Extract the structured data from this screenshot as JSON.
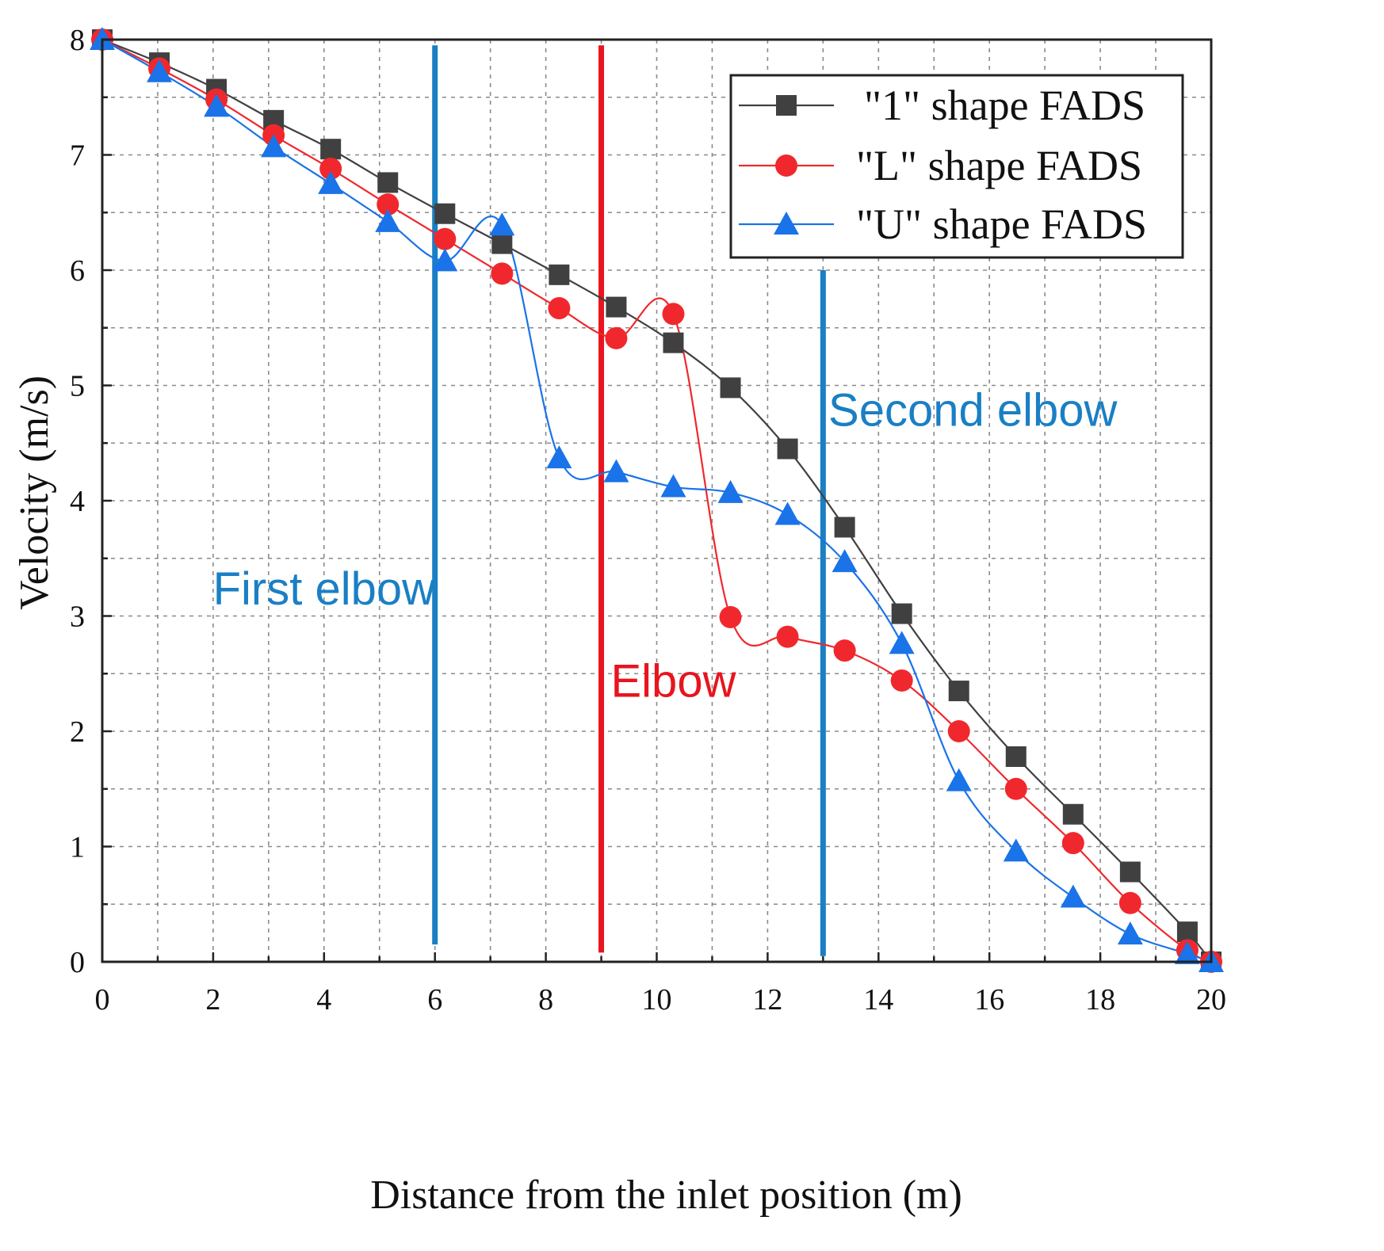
{
  "chart_data": {
    "type": "line",
    "title": "",
    "xlabel": "Distance from the inlet position (m)",
    "ylabel": "Velocity (m/s)",
    "xlim": [
      0,
      20
    ],
    "ylim": [
      0,
      8
    ],
    "xticks": [
      0,
      2,
      4,
      6,
      8,
      10,
      12,
      14,
      16,
      18,
      20
    ],
    "yticks": [
      0,
      1,
      2,
      3,
      4,
      5,
      6,
      7,
      8
    ],
    "grid": true,
    "legend_position": "top-right",
    "series": [
      {
        "name": "\"1\" shape FADS",
        "color": "#404040",
        "marker": "square",
        "x": [
          0,
          1.03,
          2.06,
          3.09,
          4.12,
          5.15,
          6.18,
          7.21,
          8.24,
          9.27,
          10.3,
          11.33,
          12.36,
          13.39,
          14.42,
          15.45,
          16.48,
          17.51,
          18.54,
          19.57,
          20
        ],
        "y": [
          8.0,
          7.8,
          7.57,
          7.3,
          7.05,
          6.76,
          6.49,
          6.23,
          5.96,
          5.68,
          5.37,
          4.98,
          4.45,
          3.77,
          3.02,
          2.35,
          1.78,
          1.28,
          0.78,
          0.26,
          0.0
        ]
      },
      {
        "name": "\"L\" shape FADS",
        "color": "#f0282d",
        "marker": "circle",
        "x": [
          0,
          1.03,
          2.06,
          3.09,
          4.12,
          5.15,
          6.18,
          7.21,
          8.24,
          9.27,
          10.3,
          11.33,
          12.36,
          13.39,
          14.42,
          15.45,
          16.48,
          17.51,
          18.54,
          19.57,
          20
        ],
        "y": [
          8.0,
          7.75,
          7.48,
          7.17,
          6.88,
          6.57,
          6.27,
          5.97,
          5.67,
          5.41,
          5.62,
          2.99,
          2.82,
          2.7,
          2.44,
          2.0,
          1.5,
          1.03,
          0.51,
          0.1,
          0.0
        ]
      },
      {
        "name": "\"U\" shape FADS",
        "color": "#1a73e8",
        "marker": "triangle",
        "x": [
          0,
          1.03,
          2.06,
          3.09,
          4.12,
          5.15,
          6.18,
          7.21,
          8.24,
          9.27,
          10.3,
          11.33,
          12.36,
          13.39,
          14.42,
          15.45,
          16.48,
          17.51,
          18.54,
          19.57,
          20
        ],
        "y": [
          8.0,
          7.72,
          7.42,
          7.07,
          6.75,
          6.42,
          6.08,
          6.39,
          4.37,
          4.25,
          4.12,
          4.07,
          3.88,
          3.47,
          2.76,
          1.57,
          0.96,
          0.56,
          0.24,
          0.07,
          0.0
        ]
      }
    ],
    "annotations": [
      {
        "label": "First elbow",
        "x_line": 6,
        "color": "#1a7fc4",
        "text_x": 4.0,
        "text_y": 3.1,
        "line_y": [
          0.15,
          7.95
        ]
      },
      {
        "label": "Elbow",
        "x_line": 9,
        "color": "#e8141e",
        "text_x": 10.3,
        "text_y": 2.3,
        "line_y": [
          0.08,
          7.95
        ]
      },
      {
        "label": "Second elbow",
        "x_line": 13,
        "color": "#1a7fc4",
        "text_x": 15.7,
        "text_y": 4.65,
        "line_y": [
          0.05,
          6.0
        ]
      }
    ]
  }
}
